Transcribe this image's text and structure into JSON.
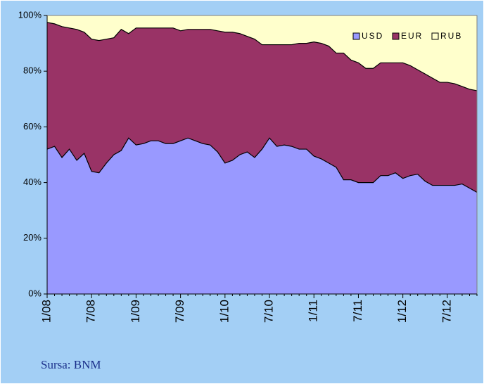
{
  "chart_data": {
    "type": "stacked_area",
    "source": "Sursa: BNM",
    "categories": [
      "1/08",
      null,
      null,
      null,
      null,
      null,
      "7/08",
      null,
      null,
      null,
      null,
      null,
      "1/09",
      null,
      null,
      null,
      null,
      null,
      "7/09",
      null,
      null,
      null,
      null,
      null,
      "1/10",
      null,
      null,
      null,
      null,
      null,
      "7/10",
      null,
      null,
      null,
      null,
      null,
      "1/11",
      null,
      null,
      null,
      null,
      null,
      "7/11",
      null,
      null,
      null,
      null,
      null,
      "1/12",
      null,
      null,
      null,
      null,
      null,
      "7/12",
      null,
      null,
      null,
      null
    ],
    "series": [
      {
        "name": "USD",
        "color": "#9999ff",
        "values": [
          52,
          53,
          49,
          52,
          48,
          50.5,
          44,
          43.5,
          47,
          50,
          51.5,
          56,
          53.5,
          54,
          55,
          55,
          54,
          54,
          55,
          56,
          55,
          54,
          53.5,
          51,
          47,
          48,
          50,
          51,
          49,
          52,
          56,
          53,
          53.5,
          53,
          52,
          52,
          49.5,
          48.5,
          47,
          45.5,
          41,
          41,
          40,
          40,
          40,
          42.5,
          42.5,
          43.5,
          41.5,
          42.5,
          43,
          40.5,
          39,
          39,
          39,
          39,
          39.5,
          38,
          36.5
        ]
      },
      {
        "name": "EUR",
        "color": "#993366",
        "values": [
          45.5,
          44,
          47,
          43.5,
          47,
          43.5,
          47.5,
          47.5,
          44.5,
          42,
          43.5,
          37.5,
          42,
          41.5,
          40.5,
          40.5,
          41.5,
          41.5,
          39.5,
          39,
          40,
          41,
          41.5,
          43.5,
          47,
          46,
          43.5,
          41.5,
          42.5,
          37.5,
          33.5,
          36.5,
          36,
          36.5,
          38,
          38,
          41,
          41.5,
          42,
          41,
          45.5,
          43,
          43,
          41,
          41,
          40.5,
          40.5,
          39.5,
          41.5,
          39.5,
          37.5,
          38.5,
          38.5,
          37,
          37,
          36.5,
          35,
          35.5,
          36.5
        ]
      },
      {
        "name": "RUB",
        "color": "#ffffcc",
        "values": [
          2.5,
          3,
          4,
          4.5,
          5,
          6,
          8.5,
          9,
          8.5,
          8,
          5,
          6.5,
          4.5,
          4.5,
          4.5,
          4.5,
          4.5,
          4.5,
          5.5,
          5,
          5,
          5,
          5,
          5.5,
          6,
          6,
          6.5,
          7.5,
          8.5,
          10.5,
          10.5,
          10.5,
          10.5,
          10.5,
          10,
          10,
          9.5,
          10,
          11,
          13.5,
          13.5,
          16,
          17,
          19,
          19,
          17,
          17,
          17,
          17,
          18,
          19.5,
          21,
          22.5,
          24,
          24,
          24.5,
          25.5,
          26.5,
          27
        ]
      }
    ],
    "ylim": [
      0,
      100
    ],
    "yticks": [
      {
        "value": 0,
        "label": "0%"
      },
      {
        "value": 20,
        "label": "20%"
      },
      {
        "value": 40,
        "label": "40%"
      },
      {
        "value": 60,
        "label": "60%"
      },
      {
        "value": 80,
        "label": "80%"
      },
      {
        "value": 100,
        "label": "100%"
      }
    ],
    "legend": "top-right",
    "grid": false
  }
}
